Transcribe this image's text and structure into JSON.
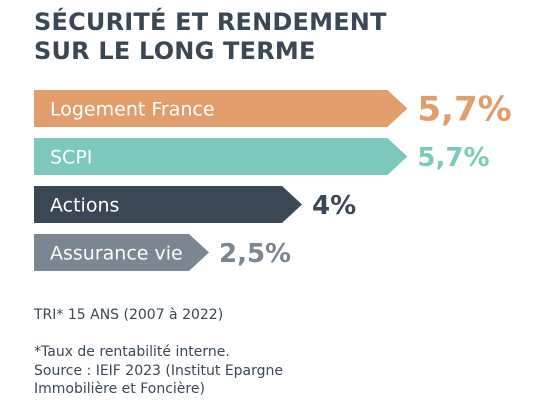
{
  "title": {
    "line1": "SÉCURITÉ ET RENDEMENT",
    "line2": "SUR LE LONG TERME"
  },
  "chart_data": {
    "type": "bar",
    "categories": [
      "Logement France",
      "SCPI",
      "Actions",
      "Assurance vie"
    ],
    "values": [
      5.7,
      5.7,
      4,
      2.5
    ],
    "value_labels": [
      "5,7%",
      "5,7%",
      "4%",
      "2,5%"
    ],
    "colors": [
      "#E19E6C",
      "#7DC8BC",
      "#3A4755",
      "#7A8691"
    ],
    "orientation": "horizontal",
    "grid": false
  },
  "footer": {
    "tri": "TRI* 15 ANS (2007 à 2022)",
    "note_line1": "*Taux de rentabilité interne.",
    "note_line2": "Source : IEIF 2023 (Institut Epargne",
    "note_line3": "Immobilière et Foncière)"
  }
}
